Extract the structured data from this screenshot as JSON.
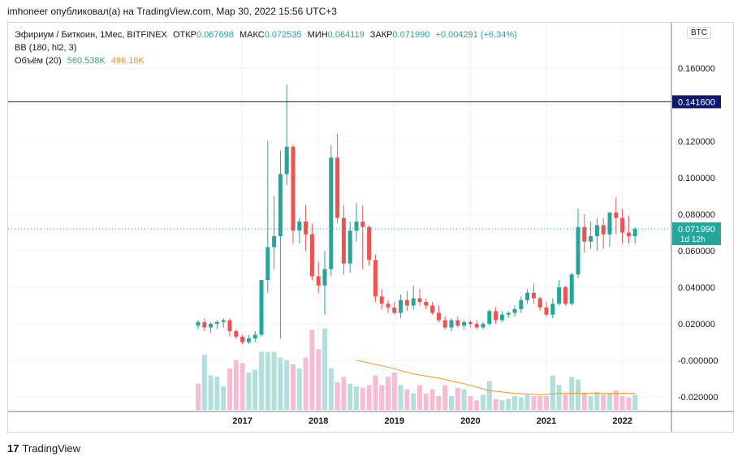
{
  "header": {
    "text": "imhoneer опубликовал(а) на TradingView.com, Мар 30, 2022 15:56 UTC+3"
  },
  "legend": {
    "symbol": "Эфириум / Биткоин, 1Мес, BITFINEX",
    "open_label": "ОТКР",
    "open": "0.067698",
    "high_label": "МАКС",
    "high": "0.072535",
    "low_label": "МИН",
    "low": "0.064119",
    "close_label": "ЗАКР",
    "close": "0.071990",
    "change": "+0.004291 (+6.34%)",
    "bb": "BB (180, hl2, 3)",
    "volume_label": "Объём (20)",
    "volume": "560.538K",
    "volume_ma": "498.16K"
  },
  "badge": {
    "currency": "BTC"
  },
  "footer": {
    "brand": "TradingView",
    "logo": "17"
  },
  "colors": {
    "up": "#26a69a",
    "down": "#ef5350",
    "up_vol": "#b2dfdb",
    "down_vol": "#f8bbd0",
    "hline": "#0d1a6e",
    "last_price": "#26a69a",
    "vol_ma": "#f7931a"
  },
  "chart_data": {
    "type": "candlestick",
    "y_ticks": [
      "0.160000",
      "0.141600",
      "0.120000",
      "0.100000",
      "0.080000",
      "0.071990",
      "0.060000",
      "0.040000",
      "0.020000",
      "-0.000000",
      "-0.020000"
    ],
    "ylim": [
      -0.025,
      0.175
    ],
    "x_ticks": [
      "2017",
      "2018",
      "2019",
      "2020",
      "2021",
      "2022"
    ],
    "hline": {
      "value": 0.1416,
      "label": "0.141600"
    },
    "last_price": {
      "value": 0.07199,
      "label": "0.071990",
      "countdown": "1d 12h"
    },
    "candles": [
      {
        "o": 0.019,
        "h": 0.022,
        "l": 0.017,
        "c": 0.021
      },
      {
        "o": 0.021,
        "h": 0.023,
        "l": 0.016,
        "c": 0.018
      },
      {
        "o": 0.018,
        "h": 0.021,
        "l": 0.015,
        "c": 0.02
      },
      {
        "o": 0.02,
        "h": 0.022,
        "l": 0.017,
        "c": 0.021
      },
      {
        "o": 0.021,
        "h": 0.023,
        "l": 0.018,
        "c": 0.022
      },
      {
        "o": 0.022,
        "h": 0.023,
        "l": 0.013,
        "c": 0.016
      },
      {
        "o": 0.016,
        "h": 0.017,
        "l": 0.012,
        "c": 0.013
      },
      {
        "o": 0.013,
        "h": 0.014,
        "l": 0.009,
        "c": 0.01
      },
      {
        "o": 0.01,
        "h": 0.014,
        "l": 0.009,
        "c": 0.012
      },
      {
        "o": 0.012,
        "h": 0.016,
        "l": 0.01,
        "c": 0.014
      },
      {
        "o": 0.014,
        "h": 0.044,
        "l": 0.013,
        "c": 0.044
      },
      {
        "o": 0.044,
        "h": 0.12,
        "l": 0.037,
        "c": 0.062
      },
      {
        "o": 0.062,
        "h": 0.09,
        "l": 0.05,
        "c": 0.068
      },
      {
        "o": 0.068,
        "h": 0.115,
        "l": 0.012,
        "c": 0.102
      },
      {
        "o": 0.102,
        "h": 0.151,
        "l": 0.096,
        "c": 0.117
      },
      {
        "o": 0.117,
        "h": 0.118,
        "l": 0.064,
        "c": 0.071
      },
      {
        "o": 0.071,
        "h": 0.078,
        "l": 0.064,
        "c": 0.076
      },
      {
        "o": 0.076,
        "h": 0.085,
        "l": 0.06,
        "c": 0.069
      },
      {
        "o": 0.069,
        "h": 0.075,
        "l": 0.044,
        "c": 0.046
      },
      {
        "o": 0.046,
        "h": 0.054,
        "l": 0.037,
        "c": 0.041
      },
      {
        "o": 0.041,
        "h": 0.06,
        "l": 0.025,
        "c": 0.05
      },
      {
        "o": 0.05,
        "h": 0.118,
        "l": 0.046,
        "c": 0.111
      },
      {
        "o": 0.111,
        "h": 0.124,
        "l": 0.075,
        "c": 0.078
      },
      {
        "o": 0.078,
        "h": 0.085,
        "l": 0.047,
        "c": 0.053
      },
      {
        "o": 0.053,
        "h": 0.076,
        "l": 0.048,
        "c": 0.071
      },
      {
        "o": 0.071,
        "h": 0.086,
        "l": 0.065,
        "c": 0.076
      },
      {
        "o": 0.076,
        "h": 0.085,
        "l": 0.05,
        "c": 0.073
      },
      {
        "o": 0.073,
        "h": 0.074,
        "l": 0.052,
        "c": 0.055
      },
      {
        "o": 0.055,
        "h": 0.058,
        "l": 0.032,
        "c": 0.035
      },
      {
        "o": 0.035,
        "h": 0.039,
        "l": 0.028,
        "c": 0.031
      },
      {
        "o": 0.031,
        "h": 0.033,
        "l": 0.026,
        "c": 0.029
      },
      {
        "o": 0.029,
        "h": 0.032,
        "l": 0.025,
        "c": 0.026
      },
      {
        "o": 0.026,
        "h": 0.036,
        "l": 0.023,
        "c": 0.033
      },
      {
        "o": 0.033,
        "h": 0.038,
        "l": 0.027,
        "c": 0.03
      },
      {
        "o": 0.03,
        "h": 0.041,
        "l": 0.028,
        "c": 0.034
      },
      {
        "o": 0.034,
        "h": 0.039,
        "l": 0.03,
        "c": 0.032
      },
      {
        "o": 0.032,
        "h": 0.034,
        "l": 0.028,
        "c": 0.03
      },
      {
        "o": 0.03,
        "h": 0.032,
        "l": 0.025,
        "c": 0.026
      },
      {
        "o": 0.026,
        "h": 0.03,
        "l": 0.021,
        "c": 0.022
      },
      {
        "o": 0.022,
        "h": 0.024,
        "l": 0.017,
        "c": 0.018
      },
      {
        "o": 0.018,
        "h": 0.023,
        "l": 0.016,
        "c": 0.022
      },
      {
        "o": 0.022,
        "h": 0.024,
        "l": 0.018,
        "c": 0.019
      },
      {
        "o": 0.019,
        "h": 0.022,
        "l": 0.017,
        "c": 0.021
      },
      {
        "o": 0.021,
        "h": 0.022,
        "l": 0.018,
        "c": 0.02
      },
      {
        "o": 0.02,
        "h": 0.022,
        "l": 0.017,
        "c": 0.018
      },
      {
        "o": 0.018,
        "h": 0.021,
        "l": 0.017,
        "c": 0.02
      },
      {
        "o": 0.02,
        "h": 0.028,
        "l": 0.019,
        "c": 0.027
      },
      {
        "o": 0.027,
        "h": 0.029,
        "l": 0.02,
        "c": 0.022
      },
      {
        "o": 0.022,
        "h": 0.027,
        "l": 0.021,
        "c": 0.025
      },
      {
        "o": 0.025,
        "h": 0.027,
        "l": 0.023,
        "c": 0.026
      },
      {
        "o": 0.026,
        "h": 0.03,
        "l": 0.024,
        "c": 0.028
      },
      {
        "o": 0.028,
        "h": 0.035,
        "l": 0.026,
        "c": 0.033
      },
      {
        "o": 0.033,
        "h": 0.039,
        "l": 0.031,
        "c": 0.037
      },
      {
        "o": 0.037,
        "h": 0.042,
        "l": 0.031,
        "c": 0.034
      },
      {
        "o": 0.034,
        "h": 0.035,
        "l": 0.027,
        "c": 0.029
      },
      {
        "o": 0.029,
        "h": 0.032,
        "l": 0.024,
        "c": 0.025
      },
      {
        "o": 0.025,
        "h": 0.034,
        "l": 0.023,
        "c": 0.031
      },
      {
        "o": 0.031,
        "h": 0.044,
        "l": 0.03,
        "c": 0.04
      },
      {
        "o": 0.04,
        "h": 0.041,
        "l": 0.03,
        "c": 0.031
      },
      {
        "o": 0.031,
        "h": 0.048,
        "l": 0.03,
        "c": 0.047
      },
      {
        "o": 0.047,
        "h": 0.083,
        "l": 0.045,
        "c": 0.073
      },
      {
        "o": 0.073,
        "h": 0.08,
        "l": 0.059,
        "c": 0.065
      },
      {
        "o": 0.065,
        "h": 0.076,
        "l": 0.061,
        "c": 0.068
      },
      {
        "o": 0.068,
        "h": 0.078,
        "l": 0.06,
        "c": 0.074
      },
      {
        "o": 0.074,
        "h": 0.078,
        "l": 0.061,
        "c": 0.069
      },
      {
        "o": 0.069,
        "h": 0.081,
        "l": 0.062,
        "c": 0.081
      },
      {
        "o": 0.081,
        "h": 0.089,
        "l": 0.069,
        "c": 0.078
      },
      {
        "o": 0.078,
        "h": 0.083,
        "l": 0.064,
        "c": 0.07
      },
      {
        "o": 0.07,
        "h": 0.079,
        "l": 0.064,
        "c": 0.068
      },
      {
        "o": 0.068,
        "h": 0.073,
        "l": 0.064,
        "c": 0.072
      }
    ],
    "volume": [
      {
        "v": 0.19,
        "up": false
      },
      {
        "v": 0.4,
        "up": true
      },
      {
        "v": 0.25,
        "up": true
      },
      {
        "v": 0.24,
        "up": true
      },
      {
        "v": 0.17,
        "up": true
      },
      {
        "v": 0.3,
        "up": false
      },
      {
        "v": 0.36,
        "up": false
      },
      {
        "v": 0.34,
        "up": false
      },
      {
        "v": 0.27,
        "up": true
      },
      {
        "v": 0.29,
        "up": true
      },
      {
        "v": 0.42,
        "up": true
      },
      {
        "v": 0.42,
        "up": true
      },
      {
        "v": 0.42,
        "up": true
      },
      {
        "v": 0.38,
        "up": true
      },
      {
        "v": 0.36,
        "up": true
      },
      {
        "v": 0.33,
        "up": false
      },
      {
        "v": 0.3,
        "up": true
      },
      {
        "v": 0.38,
        "up": false
      },
      {
        "v": 0.58,
        "up": false
      },
      {
        "v": 0.44,
        "up": false
      },
      {
        "v": 0.59,
        "up": true
      },
      {
        "v": 0.3,
        "up": true
      },
      {
        "v": 0.2,
        "up": false
      },
      {
        "v": 0.24,
        "up": false
      },
      {
        "v": 0.19,
        "up": true
      },
      {
        "v": 0.17,
        "up": true
      },
      {
        "v": 0.16,
        "up": false
      },
      {
        "v": 0.18,
        "up": false
      },
      {
        "v": 0.25,
        "up": false
      },
      {
        "v": 0.18,
        "up": false
      },
      {
        "v": 0.24,
        "up": false
      },
      {
        "v": 0.27,
        "up": false
      },
      {
        "v": 0.18,
        "up": true
      },
      {
        "v": 0.15,
        "up": false
      },
      {
        "v": 0.12,
        "up": true
      },
      {
        "v": 0.18,
        "up": false
      },
      {
        "v": 0.12,
        "up": false
      },
      {
        "v": 0.15,
        "up": false
      },
      {
        "v": 0.1,
        "up": false
      },
      {
        "v": 0.18,
        "up": false
      },
      {
        "v": 0.1,
        "up": true
      },
      {
        "v": 0.16,
        "up": false
      },
      {
        "v": 0.15,
        "up": true
      },
      {
        "v": 0.1,
        "up": false
      },
      {
        "v": 0.07,
        "up": false
      },
      {
        "v": 0.11,
        "up": true
      },
      {
        "v": 0.21,
        "up": true
      },
      {
        "v": 0.08,
        "up": false
      },
      {
        "v": 0.07,
        "up": true
      },
      {
        "v": 0.08,
        "up": true
      },
      {
        "v": 0.1,
        "up": true
      },
      {
        "v": 0.09,
        "up": true
      },
      {
        "v": 0.11,
        "up": true
      },
      {
        "v": 0.1,
        "up": false
      },
      {
        "v": 0.1,
        "up": false
      },
      {
        "v": 0.1,
        "up": false
      },
      {
        "v": 0.25,
        "up": true
      },
      {
        "v": 0.18,
        "up": true
      },
      {
        "v": 0.11,
        "up": false
      },
      {
        "v": 0.24,
        "up": true
      },
      {
        "v": 0.22,
        "up": true
      },
      {
        "v": 0.12,
        "up": false
      },
      {
        "v": 0.1,
        "up": true
      },
      {
        "v": 0.13,
        "up": true
      },
      {
        "v": 0.11,
        "up": false
      },
      {
        "v": 0.12,
        "up": true
      },
      {
        "v": 0.14,
        "up": false
      },
      {
        "v": 0.1,
        "up": false
      },
      {
        "v": 0.09,
        "up": false
      },
      {
        "v": 0.11,
        "up": true
      }
    ],
    "volume_ma": [
      {
        "i": 25,
        "v": 0.36
      },
      {
        "i": 27,
        "v": 0.34
      },
      {
        "i": 30,
        "v": 0.31
      },
      {
        "i": 34,
        "v": 0.26
      },
      {
        "i": 38,
        "v": 0.23
      },
      {
        "i": 42,
        "v": 0.19
      },
      {
        "i": 46,
        "v": 0.14
      },
      {
        "i": 50,
        "v": 0.12
      },
      {
        "i": 54,
        "v": 0.11
      },
      {
        "i": 58,
        "v": 0.12
      },
      {
        "i": 62,
        "v": 0.12
      },
      {
        "i": 66,
        "v": 0.12
      },
      {
        "i": 69,
        "v": 0.12
      }
    ]
  }
}
